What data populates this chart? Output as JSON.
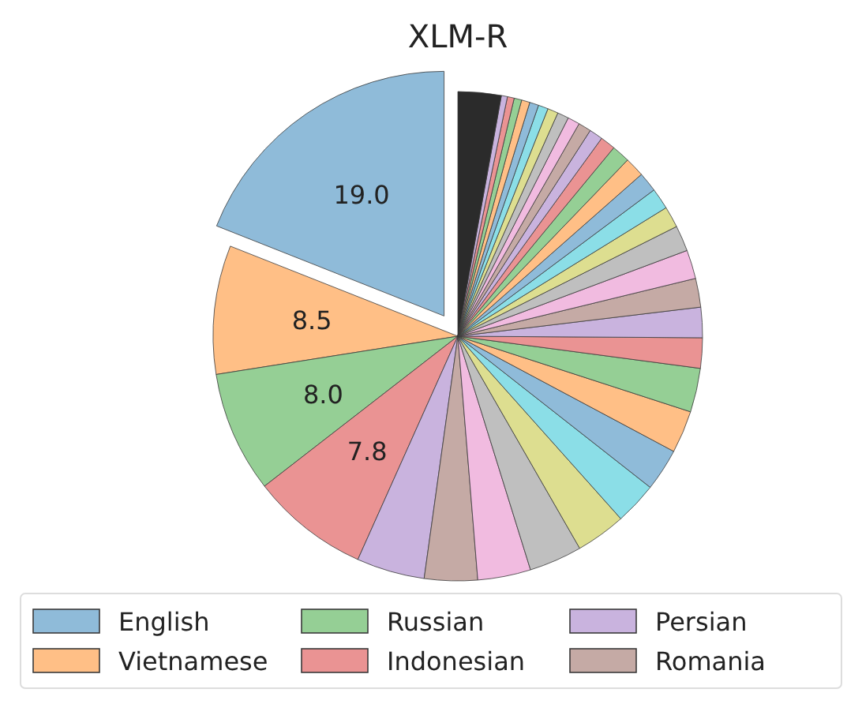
{
  "chart_data": {
    "type": "pie",
    "title": "XLM-R",
    "categories": [
      "English",
      "Vietnamese",
      "Russian",
      "Indonesian",
      "Persian",
      "Romania",
      null,
      null,
      null,
      null,
      null,
      null,
      null,
      null,
      null,
      null,
      null,
      null,
      null,
      null,
      null,
      null,
      null,
      null,
      null,
      null,
      null,
      null,
      null,
      null,
      null,
      null,
      null,
      null,
      null,
      null
    ],
    "values": [
      19.0,
      8.5,
      8.0,
      7.8,
      4.5,
      3.5,
      3.5,
      3.5,
      3.3,
      2.8,
      2.8,
      2.8,
      2.9,
      2.0,
      2.0,
      1.9,
      1.9,
      1.7,
      1.4,
      1.4,
      1.3,
      1.3,
      1.2,
      1.0,
      0.9,
      0.85,
      0.8,
      0.75,
      0.7,
      0.65,
      0.6,
      0.55,
      0.5,
      0.45,
      0.4,
      2.85
    ],
    "value_labels": [
      "19.0",
      "8.5",
      "8.0",
      "7.8",
      null,
      null,
      null,
      null,
      null,
      null,
      null,
      null,
      null,
      null,
      null,
      null,
      null,
      null,
      null,
      null,
      null,
      null,
      null,
      null,
      null,
      null,
      null,
      null,
      null,
      null,
      null,
      null,
      null,
      null,
      null,
      null
    ],
    "colors": [
      "#8fbbd9",
      "#ffbf86",
      "#95cf95",
      "#ea9393",
      "#c9b3de",
      "#c5aaa5",
      "#f1bbe0",
      "#bfbfbf",
      "#ddde90",
      "#8bdee7",
      "#8fbbd9",
      "#ffbf86",
      "#95cf95",
      "#ea9393",
      "#c9b3de",
      "#c5aaa5",
      "#f1bbe0",
      "#bfbfbf",
      "#ddde90",
      "#8bdee7",
      "#8fbbd9",
      "#ffbf86",
      "#95cf95",
      "#ea9393",
      "#c9b3de",
      "#c5aaa5",
      "#f1bbe0",
      "#bfbfbf",
      "#ddde90",
      "#8bdee7",
      "#8fbbd9",
      "#ffbf86",
      "#95cf95",
      "#ea9393",
      "#c9b3de",
      "#2b2b2b"
    ],
    "legend": "bottom"
  }
}
